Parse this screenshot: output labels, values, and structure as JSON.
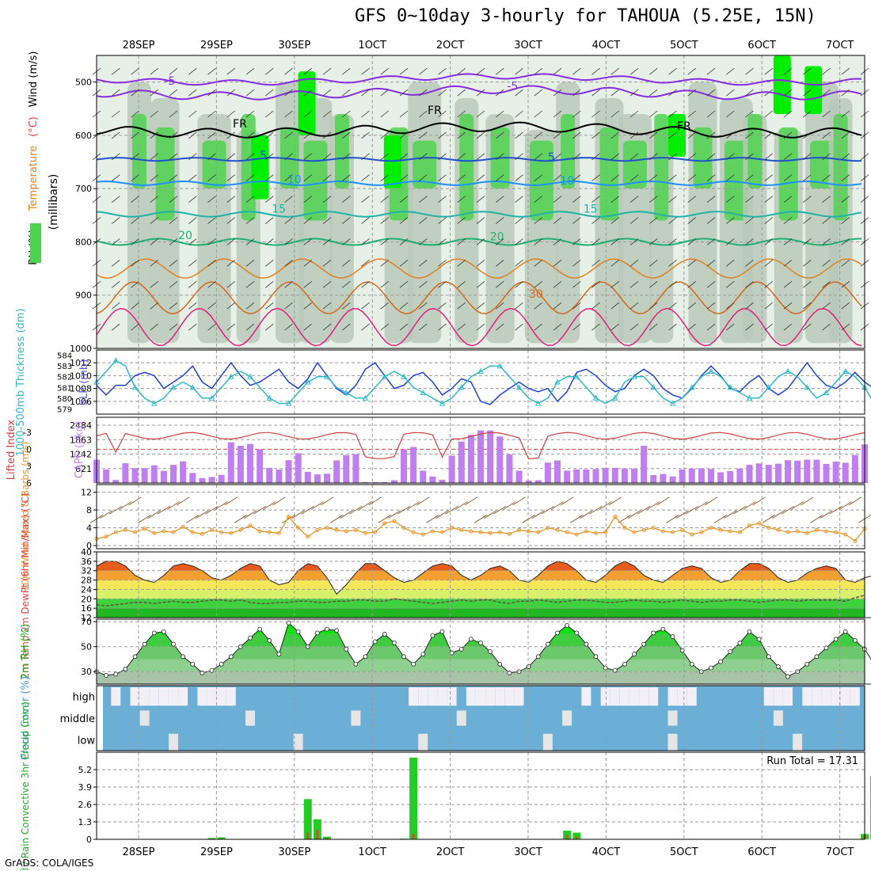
{
  "title": "GFS 0~10day 3-hourly for TAHOUA (5.25E, 15N)",
  "footer": "GrADS: COLA/IGES",
  "x_ticks": [
    "28SEP",
    "29SEP",
    "30SEP",
    "1OCT",
    "2OCT",
    "3OCT",
    "4OCT",
    "5OCT",
    "6OCT",
    "7OCT"
  ],
  "colors": {
    "rh_light": "#e6f0e6",
    "rh_mid": "#b8c9b8",
    "rh_green": "#4fd24f",
    "rh_bright": "#00ee00",
    "temp_purple": "#8a2be2",
    "temp_blue": "#2050d0",
    "temp_sky": "#1e90ff",
    "temp_teal": "#20b2aa",
    "temp_green": "#20b070",
    "temp_orange": "#e08020",
    "temp_darkorange": "#d2691e",
    "temp_magenta": "#e0207f",
    "slp": "#2040d0",
    "thickness": "#30b8c8",
    "cape": "#bf7ff0",
    "lifted": "#d04040",
    "wind": "#e8962a",
    "cloud": "#6baed6",
    "rain": "#22cc22",
    "convective": "#e84040"
  },
  "chart_data": [
    {
      "type": "heatmap",
      "name": "upper-air",
      "ylabel_parts": [
        "RH (%)",
        "Temperature",
        "(°C)",
        "Wind (m/s)"
      ],
      "ylabel2": "(millibars)",
      "y_ticks": [
        500,
        600,
        700,
        800,
        900,
        1000
      ],
      "ylim": [
        1000,
        450
      ],
      "contour_labels": [
        {
          "text": "-5",
          "day": 1.4,
          "p": 505
        },
        {
          "text": "-5",
          "day": 5.8,
          "p": 515
        },
        {
          "text": "FR",
          "day": 2.3,
          "p": 585
        },
        {
          "text": "FR",
          "day": 4.8,
          "p": 560
        },
        {
          "text": "FR",
          "day": 8.0,
          "p": 590
        },
        {
          "text": "5",
          "day": 2.6,
          "p": 645
        },
        {
          "text": "5",
          "day": 6.3,
          "p": 648
        },
        {
          "text": "10",
          "day": 3.0,
          "p": 690
        },
        {
          "text": "10",
          "day": 6.5,
          "p": 692
        },
        {
          "text": "15",
          "day": 2.8,
          "p": 745
        },
        {
          "text": "15",
          "day": 6.8,
          "p": 745
        },
        {
          "text": "20",
          "day": 1.6,
          "p": 795
        },
        {
          "text": "20",
          "day": 5.6,
          "p": 797
        },
        {
          "text": "30",
          "day": 6.1,
          "p": 905
        }
      ]
    },
    {
      "type": "line",
      "name": "slp-thickness",
      "left_label": "1000-500mb Thickness (dm)",
      "right_label": "SLP (mb)",
      "left_ticks": [
        579,
        580,
        581,
        582,
        583,
        584
      ],
      "right_ticks": [
        1006,
        1008,
        1010,
        1012
      ],
      "series": [
        {
          "name": "SLP",
          "values": [
            1008.5,
            1007,
            1008.5,
            1008.5,
            1010,
            1010.5,
            1010,
            1008,
            1009,
            1010,
            1011.5,
            1009,
            1008,
            1010,
            1012,
            1010,
            1008.5,
            1009,
            1010,
            1011,
            1009,
            1008,
            1009.5,
            1012,
            1010,
            1008,
            1007,
            1008.5,
            1011,
            1012,
            1010,
            1008,
            1008.5,
            1010,
            1010.5,
            1009,
            1007,
            1008,
            1009.5,
            1009,
            1006,
            1005.5,
            1007,
            1008,
            1009,
            1008,
            1007.5,
            1008,
            1006,
            1007.5,
            1010.5,
            1011,
            1010,
            1008.5,
            1007.5,
            1008,
            1010,
            1011,
            1010,
            1008,
            1007,
            1006.5,
            1008,
            1010,
            1011.5,
            1010,
            1008,
            1007.5,
            1009,
            1010,
            1008,
            1007,
            1008,
            1010,
            1012,
            1010,
            1008.5,
            1008,
            1009,
            1010.5,
            1009,
            1008,
            1009,
            1010.5,
            1011
          ]
        },
        {
          "name": "Thickness",
          "values": [
            581.5,
            582.5,
            583.5,
            583,
            581,
            580,
            579.5,
            580,
            581,
            581.5,
            581,
            580,
            580,
            581,
            582,
            582.5,
            582,
            581,
            580,
            579.5,
            579.5,
            580.5,
            581.5,
            582,
            582,
            581,
            580.5,
            580,
            580,
            581,
            582,
            582.5,
            582,
            581,
            580.5,
            580,
            579.5,
            580,
            581,
            582,
            582.5,
            583,
            583,
            582,
            581,
            580,
            579.5,
            580,
            581.5,
            582,
            582,
            581,
            580,
            579.5,
            580,
            581.5,
            582,
            582,
            581,
            580,
            579.5,
            580,
            581,
            582,
            582.5,
            582,
            581,
            580.5,
            580,
            580,
            581,
            582,
            582.5,
            582,
            581,
            580,
            580.5,
            581.5,
            582.5,
            582,
            581,
            579.5,
            579,
            579,
            579.5
          ]
        }
      ]
    },
    {
      "type": "bar",
      "name": "cape-lifted",
      "left_label": "Lifted Index",
      "right_label": "CAPE (J/kg)",
      "left_ticks": [
        -3,
        0,
        3,
        6
      ],
      "cape_ticks": [
        621,
        1242,
        1863,
        2484
      ],
      "cape_values": [
        1000,
        580,
        130,
        850,
        640,
        640,
        760,
        520,
        780,
        930,
        430,
        210,
        260,
        350,
        1750,
        1600,
        1680,
        1450,
        650,
        580,
        980,
        1280,
        480,
        370,
        400,
        970,
        1200,
        1240,
        40,
        40,
        40,
        120,
        1450,
        1550,
        530,
        280,
        140,
        1180,
        1780,
        2070,
        2260,
        2260,
        2000,
        1230,
        530,
        110,
        120,
        880,
        970,
        530,
        580,
        580,
        600,
        650,
        650,
        620,
        620,
        1600,
        340,
        390,
        280,
        580,
        620,
        630,
        600,
        460,
        510,
        620,
        780,
        840,
        780,
        830,
        980,
        960,
        1000,
        1000,
        820,
        920,
        870,
        1200,
        1660
      ]
    },
    {
      "type": "line",
      "name": "wind",
      "ylabel": "10m Wind Speed & Barbs (m/s)",
      "y_ticks": [
        0,
        4,
        8,
        12
      ],
      "values": [
        1.5,
        2,
        3,
        3.5,
        3,
        3.8,
        2.8,
        3.2,
        3,
        4.2,
        3,
        2.6,
        3.5,
        3,
        2.8,
        3.5,
        4.5,
        3.2,
        3,
        2.8,
        6.5,
        4,
        2,
        3.5,
        4,
        3.5,
        3.2,
        3.5,
        2.8,
        3,
        5,
        5.5,
        4,
        3,
        2.5,
        3.2,
        3,
        4,
        3.5,
        3.2,
        3,
        2.8,
        3,
        2.6,
        3.5,
        3.2,
        3,
        4,
        3.5,
        3,
        2.5,
        3.2,
        2.8,
        3,
        6.5,
        4,
        3,
        3.5,
        4,
        3.2,
        3,
        3.5,
        2.5,
        3,
        4,
        3.5,
        3.2,
        3,
        4.5,
        5,
        4,
        3.5,
        3,
        3.2,
        2.8,
        3.5,
        3.2,
        3,
        2.5,
        1,
        3.8
      ]
    },
    {
      "type": "area",
      "name": "temp-dewpt",
      "ylabel": "2m Temp 2m DewPt (6hr Min/Max) (°C)",
      "y_ticks": [
        12,
        16,
        20,
        24,
        28,
        32,
        36,
        40
      ],
      "temp": [
        34,
        36,
        36,
        34,
        30,
        28,
        27,
        30,
        34,
        35,
        34,
        32,
        29,
        28,
        30,
        33,
        35,
        34,
        28,
        26,
        27,
        32,
        35,
        34,
        29,
        22,
        26,
        31,
        35,
        35,
        32,
        29,
        27,
        28,
        31,
        34,
        35,
        34,
        30,
        28,
        30,
        33,
        34,
        32,
        28,
        27,
        30,
        34,
        36,
        35,
        32,
        28,
        27,
        30,
        34,
        36,
        34,
        30,
        28,
        27,
        30,
        33,
        34,
        33,
        29,
        27,
        28,
        32,
        35,
        35,
        33,
        29,
        27,
        28,
        31,
        33,
        34,
        33,
        28,
        27,
        29,
        30
      ],
      "dewpt": [
        17.5,
        17,
        17.5,
        18,
        18.5,
        18.5,
        18,
        18.5,
        19,
        18.5,
        18.5,
        19,
        19.5,
        19.5,
        19,
        19.5,
        18.5,
        18,
        18,
        18.5,
        18.5,
        19,
        19,
        18.5,
        18.5,
        19,
        19,
        19.5,
        19.5,
        19,
        19,
        20,
        19.5,
        19,
        18.5,
        18,
        18.5,
        19,
        19.5,
        19,
        19.5,
        19.5,
        18.5,
        18,
        19,
        19,
        19.5,
        19,
        18.5,
        19,
        19.5,
        19.5,
        19,
        18.5,
        18.5,
        19,
        19.5,
        19,
        19,
        18.5,
        19,
        19.5,
        19,
        18.5,
        19,
        19,
        19.5,
        19.5,
        19,
        18.5,
        19,
        19.5,
        19.5,
        19,
        19.5,
        19.5,
        19.5,
        19.5,
        19,
        20.5,
        21.5
      ]
    },
    {
      "type": "area",
      "name": "rh",
      "ylabel": "2m RH (%)",
      "y_ticks": [
        30,
        50,
        70
      ],
      "values": [
        30,
        27,
        28,
        32,
        42,
        52,
        61,
        62,
        52,
        42,
        36,
        29,
        31,
        36,
        42,
        50,
        57,
        64,
        55,
        44,
        69,
        62,
        50,
        61,
        64,
        63,
        48,
        36,
        42,
        54,
        60,
        53,
        42,
        36,
        44,
        59,
        62,
        45,
        48,
        56,
        53,
        46,
        36,
        29,
        30,
        34,
        42,
        52,
        61,
        67,
        61,
        52,
        42,
        33,
        31,
        36,
        44,
        52,
        61,
        64,
        58,
        47,
        36,
        30,
        33,
        38,
        46,
        53,
        62,
        56,
        42,
        34,
        26,
        30,
        36,
        42,
        49,
        56,
        62,
        55,
        48,
        36,
        42,
        49,
        56,
        63,
        66
      ]
    },
    {
      "type": "heatmap",
      "name": "cloud-cover",
      "ylabel": "Cloud Cover (%)",
      "levels": [
        "high",
        "middle",
        "low"
      ]
    },
    {
      "type": "bar",
      "name": "precip",
      "ylabel": "Total / Rain Convective 3hr Precip (mm)",
      "y_ticks": [
        0,
        1.3,
        2.6,
        3.9,
        5.2
      ],
      "run_total_label": "Run Total =  17.31",
      "total": [
        {
          "i": 12,
          "v": 0.1
        },
        {
          "i": 13,
          "v": 0.15
        },
        {
          "i": 22,
          "v": 3.0
        },
        {
          "i": 23,
          "v": 1.5
        },
        {
          "i": 24,
          "v": 0.2
        },
        {
          "i": 32,
          "v": 0.05
        },
        {
          "i": 33,
          "v": 6.1
        },
        {
          "i": 49,
          "v": 0.65
        },
        {
          "i": 50,
          "v": 0.5
        },
        {
          "i": 80,
          "v": 0.4
        },
        {
          "i": 81,
          "v": 4.7
        },
        {
          "i": 82,
          "v": 0.1
        }
      ],
      "convective": [
        {
          "i": 12,
          "v": 0.05
        },
        {
          "i": 13,
          "v": 0.05
        },
        {
          "i": 22,
          "v": 0.5
        },
        {
          "i": 23,
          "v": 0.7
        },
        {
          "i": 24,
          "v": 0.1
        },
        {
          "i": 33,
          "v": 0.4
        },
        {
          "i": 49,
          "v": 0.3
        },
        {
          "i": 50,
          "v": 0.2
        },
        {
          "i": 80,
          "v": 0.3
        },
        {
          "i": 81,
          "v": 4.5
        }
      ]
    }
  ]
}
